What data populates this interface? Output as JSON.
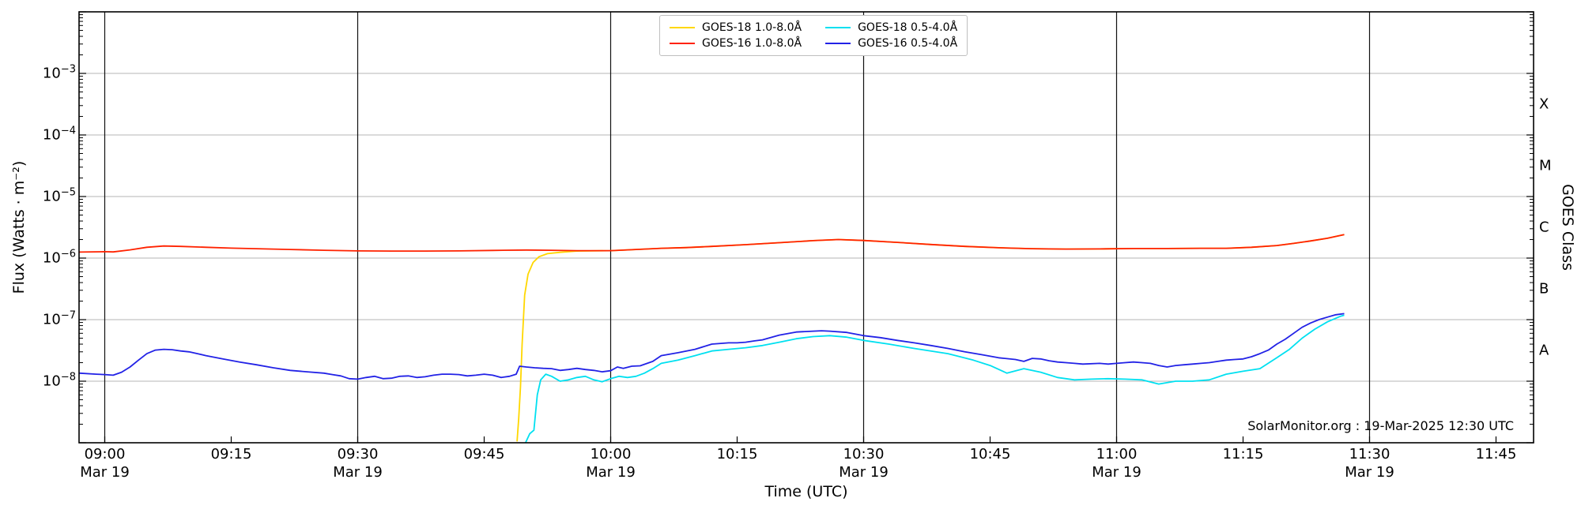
{
  "chart_data": {
    "type": "line",
    "xlabel": "Time (UTC)",
    "ylabel_left": "Flux (Watts · m⁻²)",
    "ylabel_right": "GOES Class",
    "annotation": "SolarMonitor.org : 19-Mar-2025 12:30 UTC",
    "x_axis": {
      "units": "minutes after 09:00 UTC on 19-Mar-2025",
      "range_min": [
        -3.05,
        169.5
      ],
      "major_tick_every_min": 15,
      "gridline_every_min": 30,
      "date_label": "Mar 19",
      "ticks": [
        {
          "t": 0,
          "label": "09:00",
          "date": true
        },
        {
          "t": 15,
          "label": "09:15",
          "date": false
        },
        {
          "t": 30,
          "label": "09:30",
          "date": true
        },
        {
          "t": 45,
          "label": "09:45",
          "date": false
        },
        {
          "t": 60,
          "label": "10:00",
          "date": true
        },
        {
          "t": 75,
          "label": "10:15",
          "date": false
        },
        {
          "t": 90,
          "label": "10:30",
          "date": true
        },
        {
          "t": 105,
          "label": "10:45",
          "date": false
        },
        {
          "t": 120,
          "label": "11:00",
          "date": true
        },
        {
          "t": 135,
          "label": "11:15",
          "date": false
        },
        {
          "t": 150,
          "label": "11:30",
          "date": true
        },
        {
          "t": 165,
          "label": "11:45",
          "date": false
        }
      ]
    },
    "y_axis": {
      "scale": "log",
      "range": [
        1e-09,
        0.01
      ],
      "labeled_decade_exponents": [
        -3,
        -4,
        -5,
        -6,
        -7,
        -8
      ],
      "grid": true
    },
    "goes_classes": [
      {
        "label": "X",
        "center_exponent": -3.5
      },
      {
        "label": "M",
        "center_exponent": -4.5
      },
      {
        "label": "C",
        "center_exponent": -5.5
      },
      {
        "label": "B",
        "center_exponent": -6.5
      },
      {
        "label": "A",
        "center_exponent": -7.5
      }
    ],
    "colors": {
      "h_gridline": "#b5b5b5",
      "v_gridline": "#111111",
      "frame": "#000000"
    },
    "series": [
      {
        "name": "GOES-18 1.0-8.0Å",
        "color": "#ffd700",
        "points": [
          [
            48.9,
            1.05e-09
          ],
          [
            49.1,
            2.5e-09
          ],
          [
            49.3,
            8e-09
          ],
          [
            49.5,
            4e-08
          ],
          [
            49.8,
            2.5e-07
          ],
          [
            50.2,
            5.5e-07
          ],
          [
            50.8,
            8.5e-07
          ],
          [
            51.5,
            1.05e-06
          ],
          [
            52.5,
            1.18e-06
          ],
          [
            54,
            1.24e-06
          ],
          [
            56,
            1.3e-06
          ],
          [
            60,
            1.32e-06
          ],
          [
            63,
            1.38e-06
          ],
          [
            66,
            1.44e-06
          ],
          [
            69,
            1.48e-06
          ],
          [
            72,
            1.55e-06
          ],
          [
            76,
            1.65e-06
          ],
          [
            80,
            1.78e-06
          ],
          [
            84,
            1.92e-06
          ],
          [
            87,
            2e-06
          ],
          [
            90,
            1.93e-06
          ],
          [
            94,
            1.8e-06
          ],
          [
            98,
            1.66e-06
          ],
          [
            102,
            1.55e-06
          ],
          [
            106,
            1.47e-06
          ],
          [
            110,
            1.42e-06
          ],
          [
            114,
            1.4e-06
          ],
          [
            118,
            1.41e-06
          ],
          [
            122,
            1.43e-06
          ],
          [
            126,
            1.43e-06
          ],
          [
            130,
            1.44e-06
          ],
          [
            133,
            1.44e-06
          ],
          [
            136,
            1.5e-06
          ],
          [
            139,
            1.6e-06
          ],
          [
            141,
            1.73e-06
          ],
          [
            143,
            1.9e-06
          ],
          [
            145,
            2.1e-06
          ],
          [
            147,
            2.4e-06
          ]
        ]
      },
      {
        "name": "GOES-16 1.0-8.0Å",
        "color": "#ff2200",
        "points": [
          [
            -3,
            1.25e-06
          ],
          [
            0,
            1.27e-06
          ],
          [
            1,
            1.26e-06
          ],
          [
            3,
            1.36e-06
          ],
          [
            5,
            1.5e-06
          ],
          [
            7,
            1.57e-06
          ],
          [
            9,
            1.55e-06
          ],
          [
            12,
            1.5e-06
          ],
          [
            15,
            1.45e-06
          ],
          [
            18,
            1.42e-06
          ],
          [
            22,
            1.38e-06
          ],
          [
            26,
            1.34e-06
          ],
          [
            30,
            1.31e-06
          ],
          [
            34,
            1.3e-06
          ],
          [
            38,
            1.3e-06
          ],
          [
            42,
            1.31e-06
          ],
          [
            46,
            1.33e-06
          ],
          [
            50,
            1.35e-06
          ],
          [
            53,
            1.34e-06
          ],
          [
            56,
            1.32e-06
          ],
          [
            60,
            1.32e-06
          ],
          [
            63,
            1.38e-06
          ],
          [
            66,
            1.44e-06
          ],
          [
            69,
            1.48e-06
          ],
          [
            72,
            1.55e-06
          ],
          [
            76,
            1.65e-06
          ],
          [
            80,
            1.78e-06
          ],
          [
            84,
            1.92e-06
          ],
          [
            87,
            2e-06
          ],
          [
            90,
            1.93e-06
          ],
          [
            94,
            1.8e-06
          ],
          [
            98,
            1.66e-06
          ],
          [
            102,
            1.55e-06
          ],
          [
            106,
            1.47e-06
          ],
          [
            110,
            1.42e-06
          ],
          [
            114,
            1.4e-06
          ],
          [
            118,
            1.41e-06
          ],
          [
            122,
            1.43e-06
          ],
          [
            126,
            1.43e-06
          ],
          [
            130,
            1.44e-06
          ],
          [
            133,
            1.44e-06
          ],
          [
            136,
            1.5e-06
          ],
          [
            139,
            1.6e-06
          ],
          [
            141,
            1.73e-06
          ],
          [
            143,
            1.9e-06
          ],
          [
            145,
            2.1e-06
          ],
          [
            147,
            2.4e-06
          ]
        ]
      },
      {
        "name": "GOES-18 0.5-4.0Å",
        "color": "#00e0f0",
        "points": [
          [
            49.9,
            1e-09
          ],
          [
            50.4,
            1.4e-09
          ],
          [
            50.9,
            1.6e-09
          ],
          [
            51.3,
            6e-09
          ],
          [
            51.7,
            1.05e-08
          ],
          [
            52.3,
            1.3e-08
          ],
          [
            53,
            1.2e-08
          ],
          [
            54,
            1e-08
          ],
          [
            55,
            1.05e-08
          ],
          [
            56,
            1.15e-08
          ],
          [
            57,
            1.2e-08
          ],
          [
            58,
            1.05e-08
          ],
          [
            59,
            9.8e-09
          ],
          [
            60,
            1.1e-08
          ],
          [
            61,
            1.2e-08
          ],
          [
            62,
            1.15e-08
          ],
          [
            63,
            1.2e-08
          ],
          [
            64,
            1.35e-08
          ],
          [
            65,
            1.6e-08
          ],
          [
            66,
            1.95e-08
          ],
          [
            68,
            2.2e-08
          ],
          [
            70,
            2.6e-08
          ],
          [
            72,
            3.1e-08
          ],
          [
            74,
            3.3e-08
          ],
          [
            76,
            3.5e-08
          ],
          [
            78,
            3.8e-08
          ],
          [
            80,
            4.3e-08
          ],
          [
            82,
            4.9e-08
          ],
          [
            84,
            5.3e-08
          ],
          [
            86,
            5.5e-08
          ],
          [
            88,
            5.2e-08
          ],
          [
            90,
            4.6e-08
          ],
          [
            93,
            4e-08
          ],
          [
            96,
            3.4e-08
          ],
          [
            100,
            2.8e-08
          ],
          [
            103,
            2.2e-08
          ],
          [
            105,
            1.8e-08
          ],
          [
            107,
            1.35e-08
          ],
          [
            109,
            1.6e-08
          ],
          [
            111,
            1.4e-08
          ],
          [
            113,
            1.15e-08
          ],
          [
            115,
            1.05e-08
          ],
          [
            117,
            1.08e-08
          ],
          [
            119,
            1.1e-08
          ],
          [
            121,
            1.08e-08
          ],
          [
            123,
            1.05e-08
          ],
          [
            125,
            9e-09
          ],
          [
            127,
            1e-08
          ],
          [
            129,
            1e-08
          ],
          [
            131,
            1.05e-08
          ],
          [
            133,
            1.3e-08
          ],
          [
            135,
            1.45e-08
          ],
          [
            137,
            1.6e-08
          ],
          [
            139,
            2.4e-08
          ],
          [
            140.5,
            3.3e-08
          ],
          [
            142,
            5e-08
          ],
          [
            143.5,
            7e-08
          ],
          [
            145,
            9.2e-08
          ],
          [
            146.5,
            1.13e-07
          ],
          [
            147,
            1.18e-07
          ]
        ]
      },
      {
        "name": "GOES-16 0.5-4.0Å",
        "color": "#2222e6",
        "points": [
          [
            -3,
            1.35e-08
          ],
          [
            -1,
            1.3e-08
          ],
          [
            0,
            1.28e-08
          ],
          [
            1,
            1.25e-08
          ],
          [
            2,
            1.4e-08
          ],
          [
            3,
            1.7e-08
          ],
          [
            4,
            2.2e-08
          ],
          [
            5,
            2.8e-08
          ],
          [
            6,
            3.2e-08
          ],
          [
            7,
            3.3e-08
          ],
          [
            8,
            3.25e-08
          ],
          [
            9,
            3.1e-08
          ],
          [
            10,
            3e-08
          ],
          [
            11,
            2.8e-08
          ],
          [
            12,
            2.6e-08
          ],
          [
            14,
            2.3e-08
          ],
          [
            16,
            2.05e-08
          ],
          [
            18,
            1.85e-08
          ],
          [
            20,
            1.65e-08
          ],
          [
            22,
            1.5e-08
          ],
          [
            24,
            1.42e-08
          ],
          [
            26,
            1.35e-08
          ],
          [
            27,
            1.28e-08
          ],
          [
            28,
            1.22e-08
          ],
          [
            29,
            1.1e-08
          ],
          [
            30,
            1.08e-08
          ],
          [
            31,
            1.15e-08
          ],
          [
            32,
            1.2e-08
          ],
          [
            33,
            1.1e-08
          ],
          [
            34,
            1.12e-08
          ],
          [
            35,
            1.2e-08
          ],
          [
            36,
            1.22e-08
          ],
          [
            37,
            1.15e-08
          ],
          [
            38,
            1.18e-08
          ],
          [
            39,
            1.25e-08
          ],
          [
            40,
            1.3e-08
          ],
          [
            41,
            1.3e-08
          ],
          [
            42,
            1.28e-08
          ],
          [
            43,
            1.22e-08
          ],
          [
            44,
            1.25e-08
          ],
          [
            45,
            1.3e-08
          ],
          [
            46,
            1.25e-08
          ],
          [
            47,
            1.15e-08
          ],
          [
            48,
            1.2e-08
          ],
          [
            48.8,
            1.3e-08
          ],
          [
            49.2,
            1.75e-08
          ],
          [
            50,
            1.7e-08
          ],
          [
            51,
            1.65e-08
          ],
          [
            52,
            1.62e-08
          ],
          [
            53,
            1.6e-08
          ],
          [
            54,
            1.5e-08
          ],
          [
            55,
            1.55e-08
          ],
          [
            56,
            1.62e-08
          ],
          [
            57,
            1.55e-08
          ],
          [
            58,
            1.5e-08
          ],
          [
            59,
            1.42e-08
          ],
          [
            60,
            1.48e-08
          ],
          [
            60.8,
            1.7e-08
          ],
          [
            61.5,
            1.62e-08
          ],
          [
            62.5,
            1.75e-08
          ],
          [
            63.5,
            1.78e-08
          ],
          [
            65,
            2.1e-08
          ],
          [
            66,
            2.6e-08
          ],
          [
            67,
            2.75e-08
          ],
          [
            68,
            2.9e-08
          ],
          [
            70,
            3.3e-08
          ],
          [
            72,
            4e-08
          ],
          [
            74,
            4.2e-08
          ],
          [
            75,
            4.2e-08
          ],
          [
            76,
            4.3e-08
          ],
          [
            77,
            4.5e-08
          ],
          [
            78,
            4.7e-08
          ],
          [
            80,
            5.6e-08
          ],
          [
            82,
            6.3e-08
          ],
          [
            84,
            6.5e-08
          ],
          [
            85,
            6.6e-08
          ],
          [
            86,
            6.5e-08
          ],
          [
            88,
            6.2e-08
          ],
          [
            90,
            5.5e-08
          ],
          [
            92,
            5.1e-08
          ],
          [
            94,
            4.6e-08
          ],
          [
            96,
            4.2e-08
          ],
          [
            98,
            3.8e-08
          ],
          [
            100,
            3.4e-08
          ],
          [
            102,
            3e-08
          ],
          [
            104,
            2.7e-08
          ],
          [
            106,
            2.4e-08
          ],
          [
            108,
            2.25e-08
          ],
          [
            109,
            2.1e-08
          ],
          [
            110,
            2.35e-08
          ],
          [
            111,
            2.3e-08
          ],
          [
            112,
            2.15e-08
          ],
          [
            113,
            2.05e-08
          ],
          [
            114,
            2e-08
          ],
          [
            115,
            1.95e-08
          ],
          [
            116,
            1.9e-08
          ],
          [
            118,
            1.95e-08
          ],
          [
            119,
            1.9e-08
          ],
          [
            120,
            1.95e-08
          ],
          [
            121,
            2e-08
          ],
          [
            122,
            2.05e-08
          ],
          [
            123,
            2e-08
          ],
          [
            124,
            1.95e-08
          ],
          [
            125,
            1.8e-08
          ],
          [
            126,
            1.7e-08
          ],
          [
            127,
            1.8e-08
          ],
          [
            128,
            1.85e-08
          ],
          [
            129,
            1.9e-08
          ],
          [
            130,
            1.95e-08
          ],
          [
            131,
            2e-08
          ],
          [
            132,
            2.1e-08
          ],
          [
            133,
            2.2e-08
          ],
          [
            134,
            2.25e-08
          ],
          [
            135,
            2.3e-08
          ],
          [
            136,
            2.5e-08
          ],
          [
            137,
            2.8e-08
          ],
          [
            138,
            3.2e-08
          ],
          [
            139,
            4e-08
          ],
          [
            140,
            4.8e-08
          ],
          [
            141,
            6e-08
          ],
          [
            142,
            7.5e-08
          ],
          [
            143,
            8.8e-08
          ],
          [
            144,
            1e-07
          ],
          [
            145,
            1.1e-07
          ],
          [
            146,
            1.2e-07
          ],
          [
            147,
            1.25e-07
          ]
        ]
      }
    ],
    "legend": {
      "position": "top-center",
      "columns": 2
    }
  }
}
